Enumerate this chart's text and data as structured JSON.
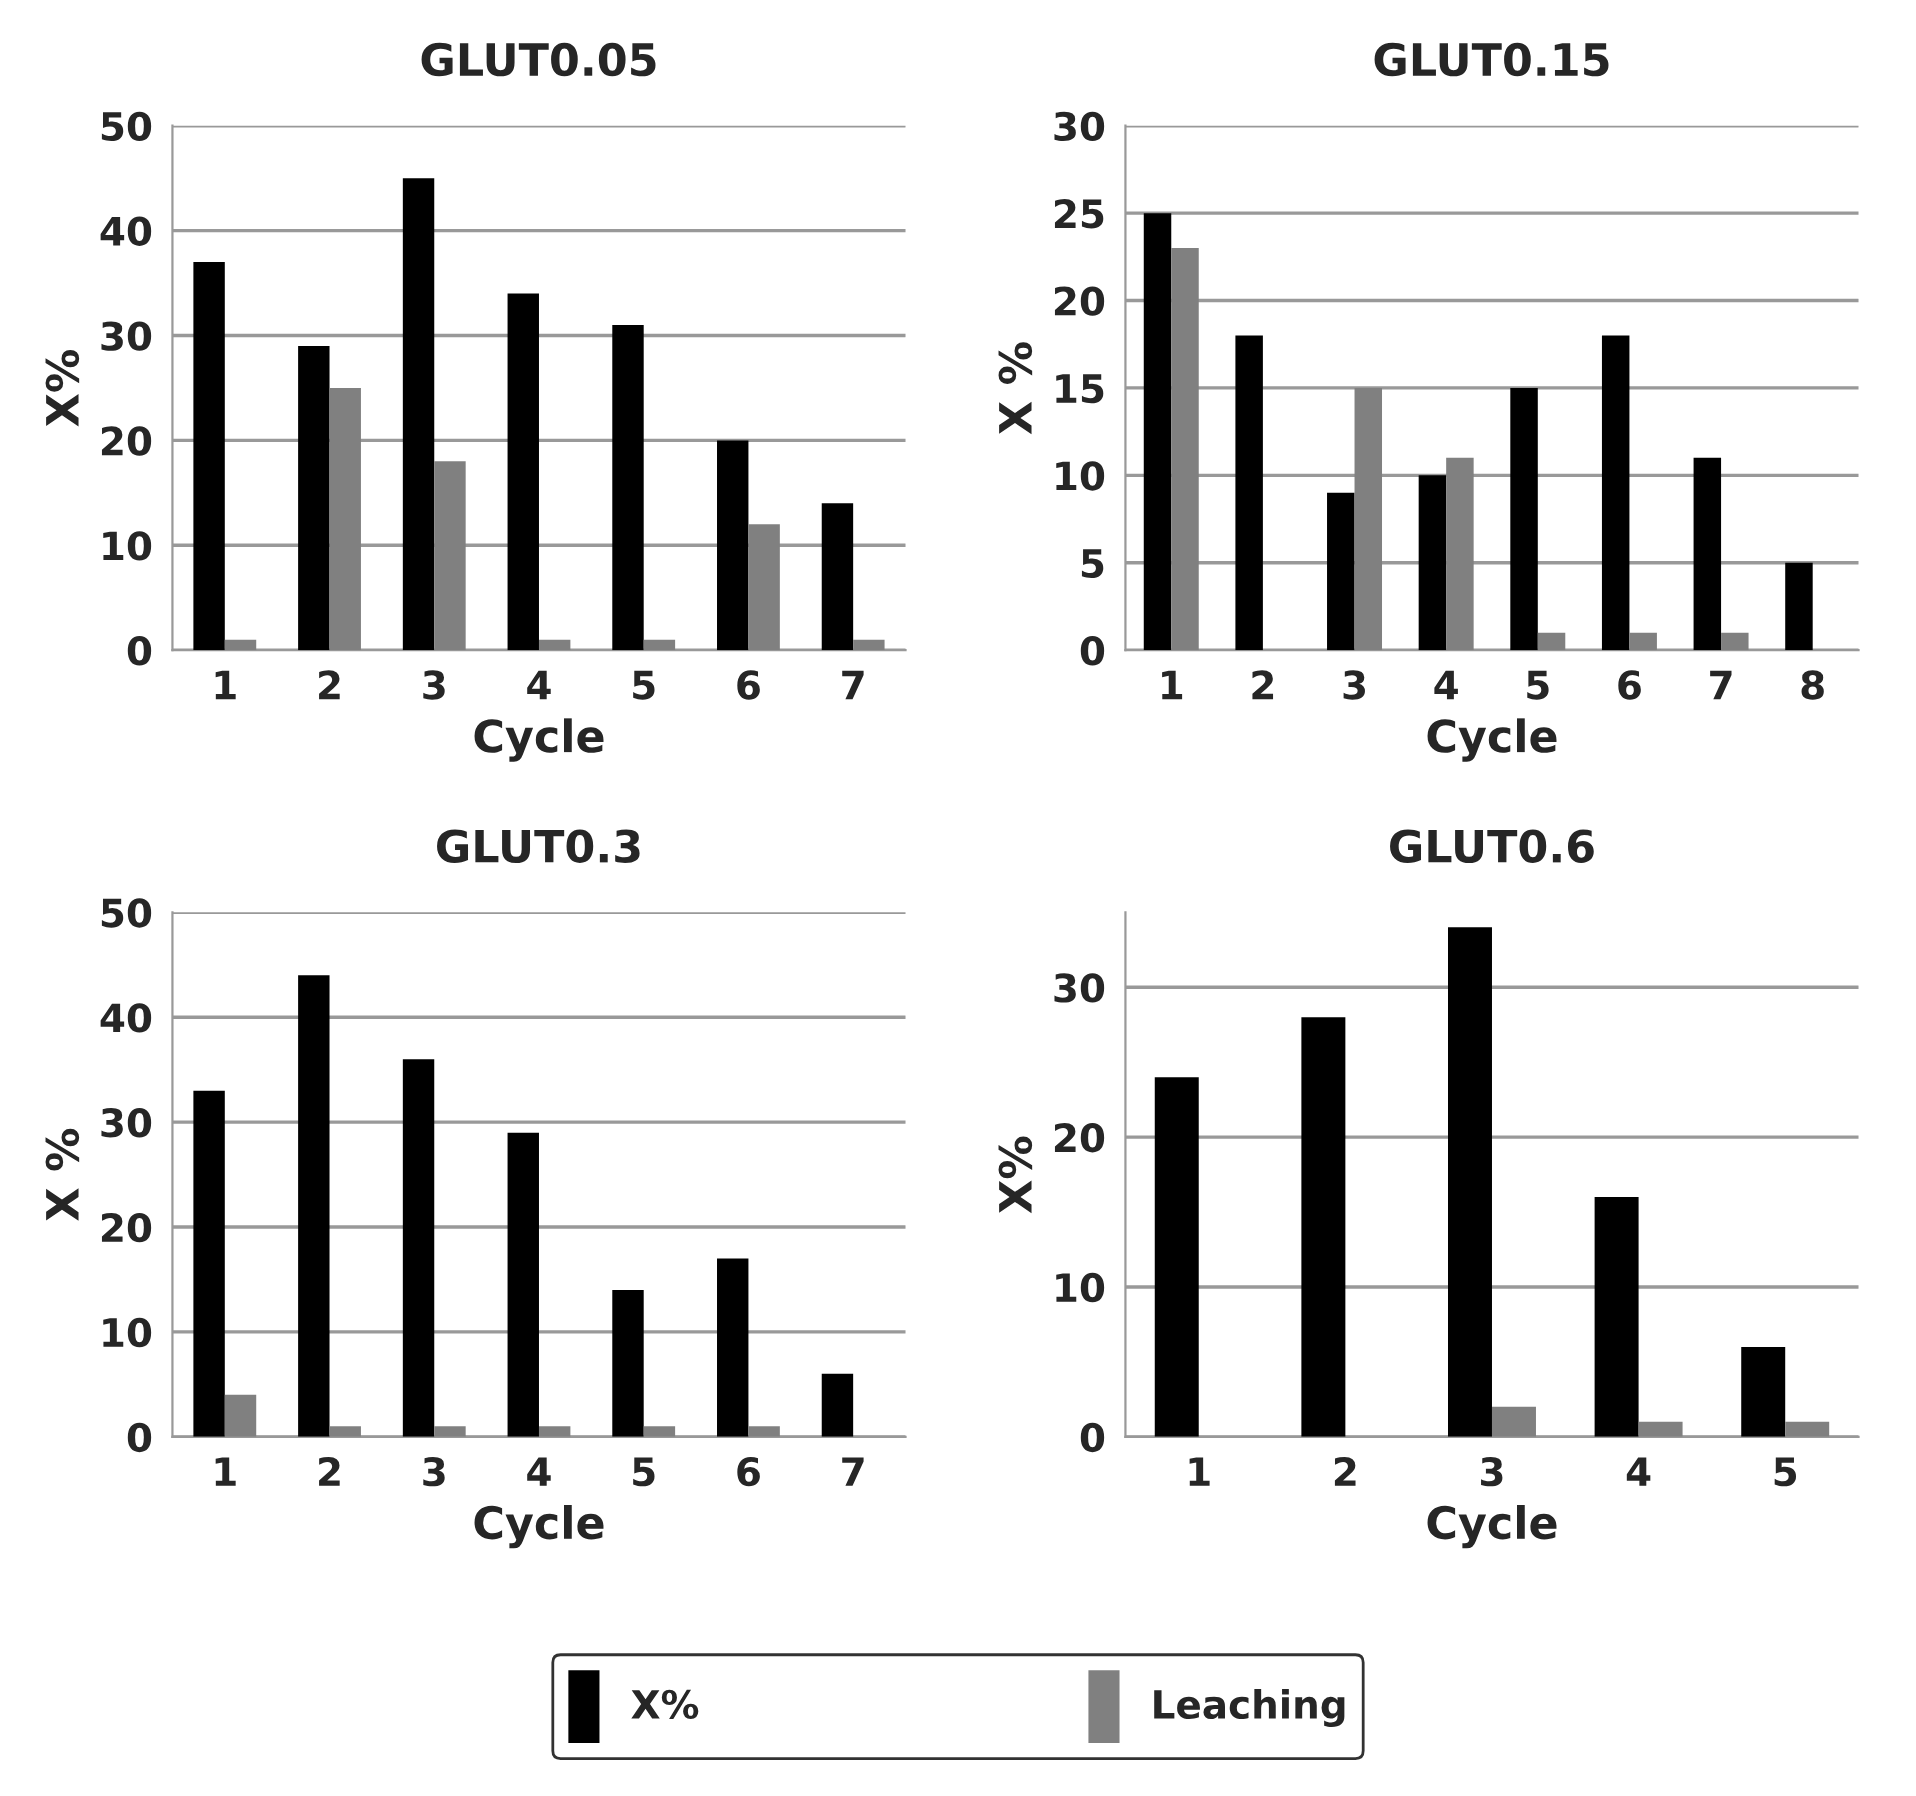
{
  "chart_data": [
    {
      "type": "bar",
      "title": "GLUT0.05",
      "xlabel": "Cycle",
      "ylabel": "X%",
      "categories": [
        "1",
        "2",
        "3",
        "4",
        "5",
        "6",
        "7"
      ],
      "ylim": [
        0,
        50
      ],
      "yticks": [
        0,
        10,
        20,
        30,
        40,
        50
      ],
      "grid": "y",
      "series": [
        {
          "color": "#000000",
          "values": [
            37,
            29,
            45,
            34,
            31,
            20,
            14
          ]
        },
        {
          "color": "#808080",
          "values": [
            1,
            25,
            18,
            1,
            1,
            12,
            1
          ]
        }
      ]
    },
    {
      "type": "bar",
      "title": "GLUT0.15",
      "xlabel": "Cycle",
      "ylabel": "X %",
      "categories": [
        "1",
        "2",
        "3",
        "4",
        "5",
        "6",
        "7",
        "8"
      ],
      "ylim": [
        0,
        30
      ],
      "yticks": [
        0,
        5,
        10,
        15,
        20,
        25,
        30
      ],
      "grid": "y",
      "series": [
        {
          "color": "#000000",
          "values": [
            25,
            18,
            9,
            10,
            15,
            18,
            11,
            5
          ]
        },
        {
          "color": "#808080",
          "values": [
            23,
            null,
            15,
            11,
            1,
            1,
            1,
            null
          ]
        }
      ]
    },
    {
      "type": "bar",
      "title": "GLUT0.3",
      "xlabel": "Cycle",
      "ylabel": "X %",
      "categories": [
        "1",
        "2",
        "3",
        "4",
        "5",
        "6",
        "7"
      ],
      "ylim": [
        0,
        50
      ],
      "yticks": [
        0,
        10,
        20,
        30,
        40,
        50
      ],
      "grid": "y",
      "series": [
        {
          "color": "#000000",
          "values": [
            33,
            44,
            36,
            29,
            14,
            17,
            6
          ]
        },
        {
          "color": "#808080",
          "values": [
            4,
            1,
            1,
            1,
            1,
            1,
            null
          ]
        }
      ]
    },
    {
      "type": "bar",
      "title": "GLUT0.6",
      "xlabel": "Cycle",
      "ylabel": "X%",
      "categories": [
        "1",
        "2",
        "3",
        "4",
        "5"
      ],
      "ylim": [
        0,
        35
      ],
      "yticks": [
        0,
        10,
        20,
        30
      ],
      "grid": "y",
      "legend": "bottom",
      "series": [
        {
          "name": "X%",
          "color": "#000000",
          "values": [
            24,
            28,
            34,
            16,
            6
          ]
        },
        {
          "name": "Leaching",
          "color": "#808080",
          "values": [
            null,
            null,
            2,
            1,
            1
          ]
        }
      ]
    }
  ]
}
